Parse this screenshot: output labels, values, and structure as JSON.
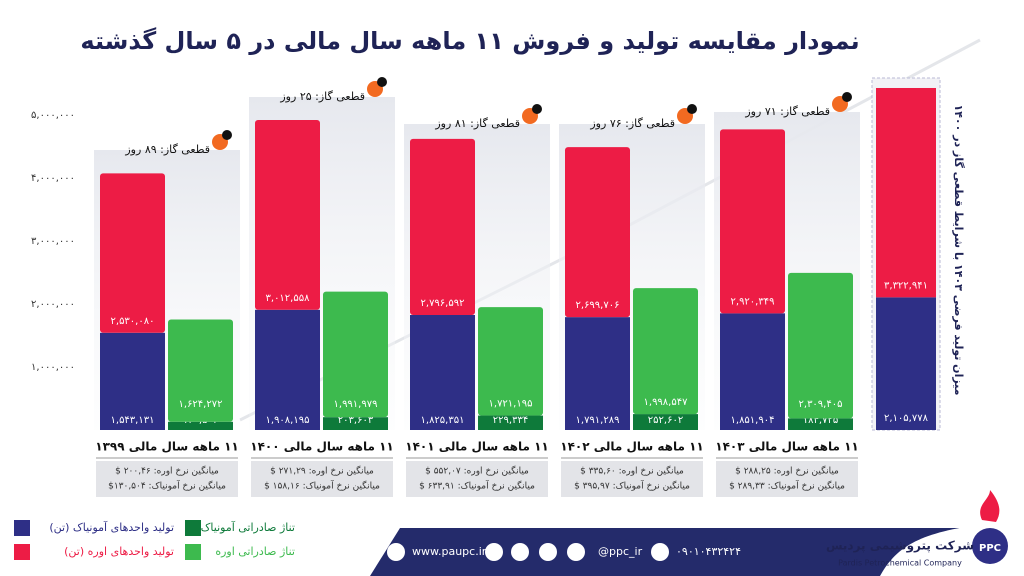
{
  "chart_data": {
    "type": "bar",
    "title": "نمودار مقایسه تولید و فروش ۱۱ ماهه سال مالی در ۵ سال گذشته",
    "categories": [
      "۱۱ ماهه سال مالی ۱۳۹۹",
      "۱۱ ماهه سال مالی ۱۴۰۰",
      "۱۱ ماهه سال مالی ۱۴۰۱",
      "۱۱ ماهه سال مالی ۱۴۰۲",
      "۱۱ ماهه سال مالی ۱۴۰۳"
    ],
    "series": [
      {
        "name": "تولید واحدهای آمونیاک (تن)",
        "color": "#2e2f86",
        "values": [
          1543131,
          1908195,
          1825351,
          1791289,
          1851904
        ],
        "value_labels": [
          "۱,۵۴۳,۱۳۱",
          "۱,۹۰۸,۱۹۵",
          "۱,۸۲۵,۳۵۱",
          "۱,۷۹۱,۲۸۹",
          "۱,۸۵۱,۹۰۴"
        ]
      },
      {
        "name": "تولید واحدهای اوره (تن)",
        "color": "#ed1c45",
        "values": [
          2530080,
          3012558,
          2796592,
          2699706,
          2920349
        ],
        "value_labels": [
          "۲,۵۳۰,۰۸۰",
          "۳,۰۱۲,۵۵۸",
          "۲,۷۹۶,۵۹۲",
          "۲,۶۹۹,۷۰۶",
          "۲,۹۲۰,۳۴۹"
        ]
      },
      {
        "name": "تناژ صادراتی آمونیاک",
        "color": "#0e7a3a",
        "values": [
          130504,
          203603,
          229334,
          252602,
          184725
        ],
        "value_labels": [
          "۱۳۰,۵۰۴",
          "۲۰۳,۶۰۳",
          "۲۲۹,۳۳۴",
          "۲۵۲,۶۰۲",
          "۱۸۴,۷۲۵"
        ]
      },
      {
        "name": "تناژ صادراتی اوره",
        "color": "#3dba4e",
        "values": [
          1624272,
          1991979,
          1721195,
          1998547,
          2309405
        ],
        "value_labels": [
          "۱,۶۲۴,۲۷۲",
          "۱,۹۹۱,۹۷۹",
          "۱,۷۲۱,۱۹۵",
          "۱,۹۹۸,۵۴۷",
          "۲,۳۰۹,۴۰۵"
        ]
      }
    ],
    "gas_cuts": [
      "قطعی گاز: ۸۹ روز",
      "قطعی گاز: ۲۵ روز",
      "قطعی گاز: ۸۱ روز",
      "قطعی گاز: ۷۶ روز",
      "قطعی گاز: ۷۱ روز"
    ],
    "price_notes": [
      [
        "میانگین نرخ اوره: ۲۰۰,۴۶ $",
        "میانگین نرخ آمونیاک: ۱۳۰,۵۰۴$"
      ],
      [
        "میانگین نرخ اوره: ۲۷۱,۲۹ $",
        "میانگین نرخ آمونیاک: ۱۵۸,۱۶ $"
      ],
      [
        "میانگین نرخ اوره: ۵۵۲,۰۷ $",
        "میانگین نرخ آمونیاک: ۶۳۳,۹۱ $"
      ],
      [
        "میانگین نرخ اوره: ۳۳۵,۶۰ $",
        "میانگین نرخ آمونیاک: ۳۹۵,۹۷ $"
      ],
      [
        "میانگین نرخ اوره: ۲۸۸,۲۵ $",
        "میانگین نرخ آمونیاک: ۲۸۹,۳۳ $"
      ]
    ],
    "forecast": {
      "label": "میزان تولید فرضی ۱۴۰۳ با شرایط قطعی گاز در ۱۴۰۰",
      "values": [
        2105778,
        3322941
      ],
      "value_labels": [
        "۲,۱۰۵,۷۷۸",
        "۳,۳۲۲,۹۴۱"
      ]
    },
    "ylim": [
      0,
      5500000
    ],
    "yticks": [
      {
        "value": 1000000,
        "label": "۱,۰۰۰,۰۰۰"
      },
      {
        "value": 2000000,
        "label": "۲,۰۰۰,۰۰۰"
      },
      {
        "value": 3000000,
        "label": "۳,۰۰۰,۰۰۰"
      },
      {
        "value": 4000000,
        "label": "۴,۰۰۰,۰۰۰"
      },
      {
        "value": 5000000,
        "label": "۵,۰۰۰,۰۰۰"
      }
    ]
  },
  "footer": {
    "website": "www.paupc.ir",
    "handle": "@ppc_ir",
    "phone": "۰۹۰۱۰۴۳۲۴۲۴",
    "company_fa": "شرکت پتروشیمی پردیس",
    "company_en": "Pardis Petrochemical Company",
    "logo": "PPC"
  }
}
